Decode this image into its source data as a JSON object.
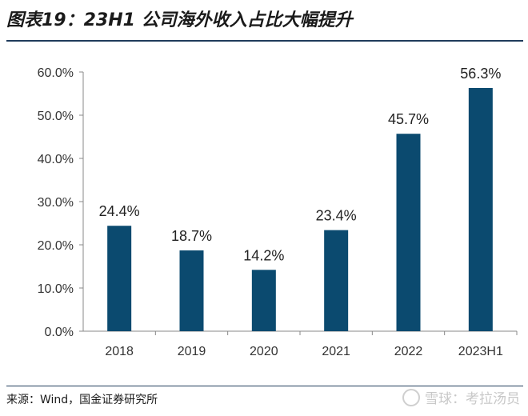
{
  "title": "图表19：23H1 公司海外收入占比大幅提升",
  "source": "来源：Wind，国金证券研究所",
  "watermark": "雪球：考拉汤员",
  "chart_data": {
    "type": "bar",
    "categories": [
      "2018",
      "2019",
      "2020",
      "2021",
      "2022",
      "2023H1"
    ],
    "values": [
      24.4,
      18.7,
      14.2,
      23.4,
      45.7,
      56.3
    ],
    "data_labels": [
      "24.4%",
      "18.7%",
      "14.2%",
      "23.4%",
      "45.7%",
      "56.3%"
    ],
    "y_ticks": [
      "0.0%",
      "10.0%",
      "20.0%",
      "30.0%",
      "40.0%",
      "50.0%",
      "60.0%"
    ],
    "y_tick_values": [
      0,
      10,
      20,
      30,
      40,
      50,
      60
    ],
    "ylim": [
      0,
      60
    ],
    "xlabel": "",
    "ylabel": "",
    "grid": false,
    "bar_color": "#0b4a6f"
  }
}
